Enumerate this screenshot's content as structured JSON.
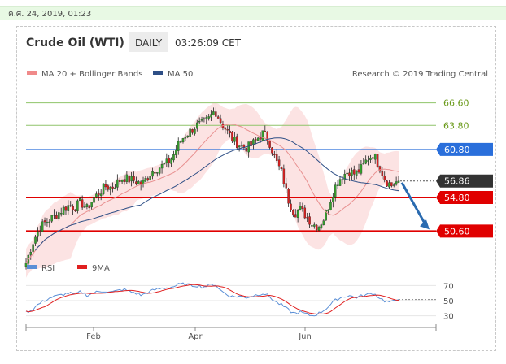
{
  "timestamp": "ค.ศ. 24, 2019, 01:23",
  "header": {
    "title": "Crude Oil (WTI)",
    "timeframe": "DAILY",
    "time": "03:26:09 CET"
  },
  "legend": {
    "ma20_label": "MA 20 + Bollinger Bands",
    "ma50_label": "MA 50",
    "credit": "Research © 2019 Trading Central"
  },
  "rsi_legend": {
    "rsi_label": "RSI",
    "ma_label": "9MA"
  },
  "colors": {
    "ma20": "#f08a8a",
    "ma50": "#4a6fa5",
    "bull": "#33a02c",
    "bear": "#d62020",
    "support": "#e00000",
    "resistance": "#8fc46a",
    "pivot": "#2a6fdb",
    "last": "#333333",
    "arrow": "#2a6bb0",
    "rsi": "#5b8fd6",
    "rsi_ma": "#e02020"
  },
  "chart_data": [
    {
      "type": "candlestick",
      "x_ticks": [
        "Feb",
        "Apr",
        "Jun"
      ],
      "ylim": [
        47.5,
        69
      ],
      "levels": [
        {
          "value": 66.6,
          "label": "66.60",
          "kind": "resistance"
        },
        {
          "value": 63.8,
          "label": "63.80",
          "kind": "resistance"
        },
        {
          "value": 60.8,
          "label": "60.80",
          "kind": "pivot"
        },
        {
          "value": 56.86,
          "label": "56.86",
          "kind": "last"
        },
        {
          "value": 54.8,
          "label": "54.80",
          "kind": "support"
        },
        {
          "value": 50.6,
          "label": "50.60",
          "kind": "support"
        }
      ],
      "close_path": [
        46.6,
        49.0,
        50.7,
        51.6,
        52.1,
        52.7,
        53.3,
        53.8,
        53.6,
        54.2,
        53.4,
        54.6,
        55.4,
        56.2,
        56.0,
        56.7,
        57.3,
        57.0,
        56.9,
        56.4,
        57.4,
        58.3,
        58.6,
        59.0,
        59.8,
        61.4,
        62.5,
        63.1,
        63.8,
        64.0,
        64.6,
        65.7,
        64.2,
        63.1,
        61.9,
        61.4,
        61.0,
        61.3,
        62.2,
        62.9,
        61.6,
        59.4,
        57.8,
        54.6,
        52.8,
        53.3,
        52.5,
        51.5,
        51.2,
        52.3,
        54.6,
        56.7,
        57.6,
        58.1,
        57.7,
        58.4,
        59.6,
        60.2,
        58.7,
        56.9,
        56.3,
        56.86
      ]
    },
    {
      "type": "line",
      "name": "RSI",
      "ylim": [
        20,
        80
      ],
      "y_ticks": [
        30,
        50,
        70
      ],
      "rsi_path": [
        35,
        38,
        45,
        50,
        54,
        56,
        58,
        60,
        58,
        62,
        57,
        60,
        62,
        63,
        61,
        63,
        65,
        62,
        60,
        57,
        61,
        64,
        66,
        67,
        68,
        71,
        72,
        70,
        70,
        68,
        70,
        72,
        63,
        58,
        55,
        56,
        54,
        56,
        58,
        60,
        55,
        48,
        44,
        38,
        33,
        35,
        32,
        30,
        33,
        38,
        45,
        52,
        55,
        57,
        54,
        56,
        58,
        60,
        54,
        49,
        48,
        51
      ]
    }
  ]
}
